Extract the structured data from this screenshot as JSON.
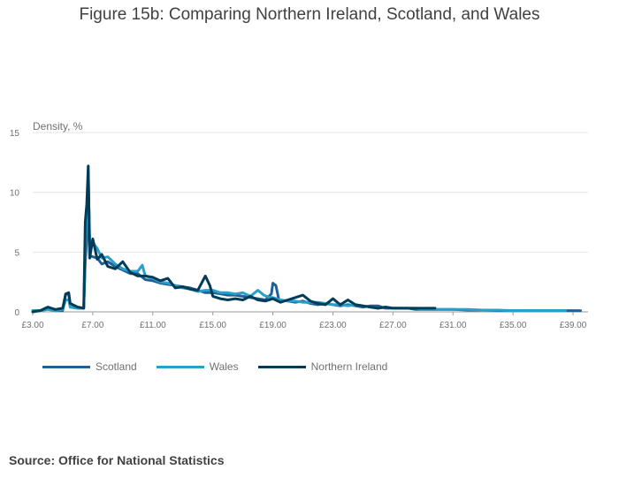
{
  "title": "Figure 15b: Comparing Northern Ireland, Scotland, and Wales",
  "source": "Source: Office for National Statistics",
  "chart_data": {
    "type": "line",
    "title": "Figure 15b: Comparing Northern Ireland, Scotland, and Wales",
    "ylabel": "Density, %",
    "xlabel": "",
    "xlim": [
      3.0,
      40.0
    ],
    "ylim": [
      0,
      15
    ],
    "x_ticks": [
      3,
      7,
      11,
      15,
      19,
      23,
      27,
      31,
      35,
      39
    ],
    "x_tick_labels": [
      "£3.00",
      "£7.00",
      "£11.00",
      "£15.00",
      "£19.00",
      "£23.00",
      "£27.00",
      "£31.00",
      "£35.00",
      "£39.00"
    ],
    "y_ticks": [
      0,
      5,
      10,
      15
    ],
    "y_tick_labels": [
      "0",
      "5",
      "10",
      "15"
    ],
    "grid": true,
    "legend_position": "bottom-left",
    "series": [
      {
        "name": "Scotland",
        "color": "#206095",
        "dash": "solid",
        "points": [
          [
            3.0,
            0.1
          ],
          [
            3.5,
            0.1
          ],
          [
            4.0,
            0.3
          ],
          [
            4.5,
            0.1
          ],
          [
            5.0,
            0.1
          ],
          [
            5.2,
            1.5
          ],
          [
            5.4,
            1.5
          ],
          [
            5.5,
            0.4
          ],
          [
            6.0,
            0.3
          ],
          [
            6.4,
            0.3
          ],
          [
            6.5,
            4.0
          ],
          [
            6.6,
            6.0
          ],
          [
            6.7,
            11.8
          ],
          [
            6.8,
            4.7
          ],
          [
            7.0,
            4.6
          ],
          [
            7.3,
            4.5
          ],
          [
            7.6,
            4.0
          ],
          [
            8.0,
            4.2
          ],
          [
            8.5,
            3.8
          ],
          [
            9.0,
            3.5
          ],
          [
            9.5,
            3.2
          ],
          [
            10.0,
            3.2
          ],
          [
            10.5,
            2.7
          ],
          [
            11.0,
            2.6
          ],
          [
            11.5,
            2.4
          ],
          [
            12.0,
            2.3
          ],
          [
            12.5,
            2.2
          ],
          [
            13.0,
            2.1
          ],
          [
            13.5,
            2.0
          ],
          [
            14.0,
            1.8
          ],
          [
            14.5,
            1.6
          ],
          [
            15.0,
            1.6
          ],
          [
            15.5,
            1.5
          ],
          [
            16.0,
            1.4
          ],
          [
            16.5,
            1.4
          ],
          [
            17.0,
            1.3
          ],
          [
            17.5,
            1.2
          ],
          [
            18.0,
            1.1
          ],
          [
            18.5,
            1.0
          ],
          [
            18.9,
            1.5
          ],
          [
            19.0,
            2.4
          ],
          [
            19.2,
            2.2
          ],
          [
            19.4,
            1.0
          ],
          [
            20.0,
            0.9
          ],
          [
            20.5,
            0.8
          ],
          [
            21.0,
            0.9
          ],
          [
            21.5,
            0.7
          ],
          [
            22.0,
            0.6
          ],
          [
            22.5,
            0.7
          ],
          [
            23.0,
            0.6
          ],
          [
            23.5,
            0.5
          ],
          [
            24.0,
            0.6
          ],
          [
            24.5,
            0.5
          ],
          [
            25.0,
            0.4
          ],
          [
            25.5,
            0.5
          ],
          [
            26.0,
            0.5
          ],
          [
            26.5,
            0.3
          ],
          [
            27.0,
            0.3
          ],
          [
            27.5,
            0.3
          ],
          [
            28.0,
            0.3
          ],
          [
            28.5,
            0.2
          ],
          [
            29.0,
            0.2
          ],
          [
            30.0,
            0.2
          ],
          [
            31.0,
            0.2
          ],
          [
            32.0,
            0.15
          ],
          [
            33.0,
            0.15
          ],
          [
            34.0,
            0.1
          ],
          [
            35.0,
            0.1
          ],
          [
            36.0,
            0.1
          ],
          [
            37.0,
            0.1
          ],
          [
            38.0,
            0.1
          ],
          [
            39.0,
            0.1
          ],
          [
            39.5,
            0.1
          ]
        ]
      },
      {
        "name": "Wales",
        "color": "#27a0cc",
        "dash": "solid",
        "points": [
          [
            3.0,
            0.1
          ],
          [
            3.5,
            0.1
          ],
          [
            4.0,
            0.2
          ],
          [
            4.5,
            0.1
          ],
          [
            5.0,
            0.2
          ],
          [
            5.2,
            1.0
          ],
          [
            5.4,
            1.0
          ],
          [
            5.5,
            0.4
          ],
          [
            6.0,
            0.3
          ],
          [
            6.4,
            0.3
          ],
          [
            6.5,
            5.0
          ],
          [
            6.6,
            8.0
          ],
          [
            6.7,
            11.0
          ],
          [
            6.8,
            5.8
          ],
          [
            7.0,
            5.8
          ],
          [
            7.3,
            5.3
          ],
          [
            7.6,
            4.5
          ],
          [
            8.0,
            4.6
          ],
          [
            8.5,
            4.0
          ],
          [
            9.0,
            3.6
          ],
          [
            9.5,
            3.4
          ],
          [
            10.0,
            3.4
          ],
          [
            10.3,
            3.9
          ],
          [
            10.5,
            3.0
          ],
          [
            11.0,
            2.8
          ],
          [
            11.5,
            2.5
          ],
          [
            12.0,
            2.4
          ],
          [
            12.5,
            2.2
          ],
          [
            13.0,
            2.0
          ],
          [
            13.5,
            1.9
          ],
          [
            14.0,
            1.7
          ],
          [
            14.5,
            1.8
          ],
          [
            15.0,
            1.8
          ],
          [
            15.5,
            1.6
          ],
          [
            16.0,
            1.6
          ],
          [
            16.5,
            1.5
          ],
          [
            17.0,
            1.6
          ],
          [
            17.5,
            1.3
          ],
          [
            18.0,
            1.8
          ],
          [
            18.4,
            1.4
          ],
          [
            18.8,
            1.2
          ],
          [
            19.0,
            1.2
          ],
          [
            19.5,
            1.0
          ],
          [
            20.0,
            0.9
          ],
          [
            20.5,
            0.9
          ],
          [
            21.0,
            0.8
          ],
          [
            21.5,
            0.8
          ],
          [
            22.0,
            0.8
          ],
          [
            22.5,
            0.7
          ],
          [
            23.0,
            0.6
          ],
          [
            23.5,
            0.6
          ],
          [
            24.0,
            0.5
          ],
          [
            24.5,
            0.6
          ],
          [
            25.0,
            0.5
          ],
          [
            25.5,
            0.4
          ],
          [
            26.0,
            0.3
          ],
          [
            26.5,
            0.4
          ],
          [
            27.0,
            0.3
          ],
          [
            27.5,
            0.3
          ],
          [
            28.0,
            0.3
          ],
          [
            28.5,
            0.3
          ],
          [
            29.0,
            0.2
          ],
          [
            30.0,
            0.2
          ],
          [
            31.0,
            0.2
          ],
          [
            32.0,
            0.2
          ],
          [
            33.0,
            0.15
          ],
          [
            34.0,
            0.15
          ],
          [
            35.0,
            0.1
          ],
          [
            36.0,
            0.1
          ],
          [
            37.0,
            0.1
          ],
          [
            38.0,
            0.1
          ],
          [
            38.5,
            0.1
          ]
        ]
      },
      {
        "name": "Northern Ireland",
        "color": "#003c57",
        "dash": "solid",
        "points": [
          [
            3.0,
            0.0
          ],
          [
            3.5,
            0.1
          ],
          [
            4.0,
            0.4
          ],
          [
            4.5,
            0.2
          ],
          [
            5.0,
            0.3
          ],
          [
            5.2,
            1.5
          ],
          [
            5.4,
            1.6
          ],
          [
            5.5,
            0.7
          ],
          [
            6.0,
            0.4
          ],
          [
            6.4,
            0.3
          ],
          [
            6.5,
            7.5
          ],
          [
            6.6,
            9.0
          ],
          [
            6.7,
            12.2
          ],
          [
            6.8,
            4.5
          ],
          [
            7.0,
            6.1
          ],
          [
            7.3,
            4.4
          ],
          [
            7.6,
            4.8
          ],
          [
            8.0,
            3.8
          ],
          [
            8.5,
            3.6
          ],
          [
            9.0,
            4.2
          ],
          [
            9.5,
            3.3
          ],
          [
            10.0,
            3.0
          ],
          [
            10.5,
            3.0
          ],
          [
            11.0,
            2.9
          ],
          [
            11.5,
            2.6
          ],
          [
            12.0,
            2.8
          ],
          [
            12.5,
            2.0
          ],
          [
            13.0,
            2.1
          ],
          [
            13.5,
            1.9
          ],
          [
            14.0,
            1.8
          ],
          [
            14.5,
            3.0
          ],
          [
            14.8,
            2.2
          ],
          [
            15.0,
            1.3
          ],
          [
            15.5,
            1.1
          ],
          [
            16.0,
            1.0
          ],
          [
            16.5,
            1.1
          ],
          [
            17.0,
            1.0
          ],
          [
            17.5,
            1.3
          ],
          [
            18.0,
            1.0
          ],
          [
            18.5,
            0.9
          ],
          [
            19.0,
            1.1
          ],
          [
            19.5,
            0.8
          ],
          [
            20.0,
            1.0
          ],
          [
            20.5,
            1.2
          ],
          [
            21.0,
            1.4
          ],
          [
            21.5,
            0.9
          ],
          [
            22.0,
            0.7
          ],
          [
            22.5,
            0.6
          ],
          [
            23.0,
            1.1
          ],
          [
            23.5,
            0.6
          ],
          [
            24.0,
            1.0
          ],
          [
            24.5,
            0.6
          ],
          [
            25.0,
            0.5
          ],
          [
            25.5,
            0.4
          ],
          [
            26.0,
            0.3
          ],
          [
            26.5,
            0.4
          ],
          [
            27.0,
            0.3
          ],
          [
            27.5,
            0.3
          ],
          [
            28.0,
            0.3
          ],
          [
            29.0,
            0.3
          ],
          [
            29.8,
            0.3
          ]
        ]
      }
    ]
  }
}
